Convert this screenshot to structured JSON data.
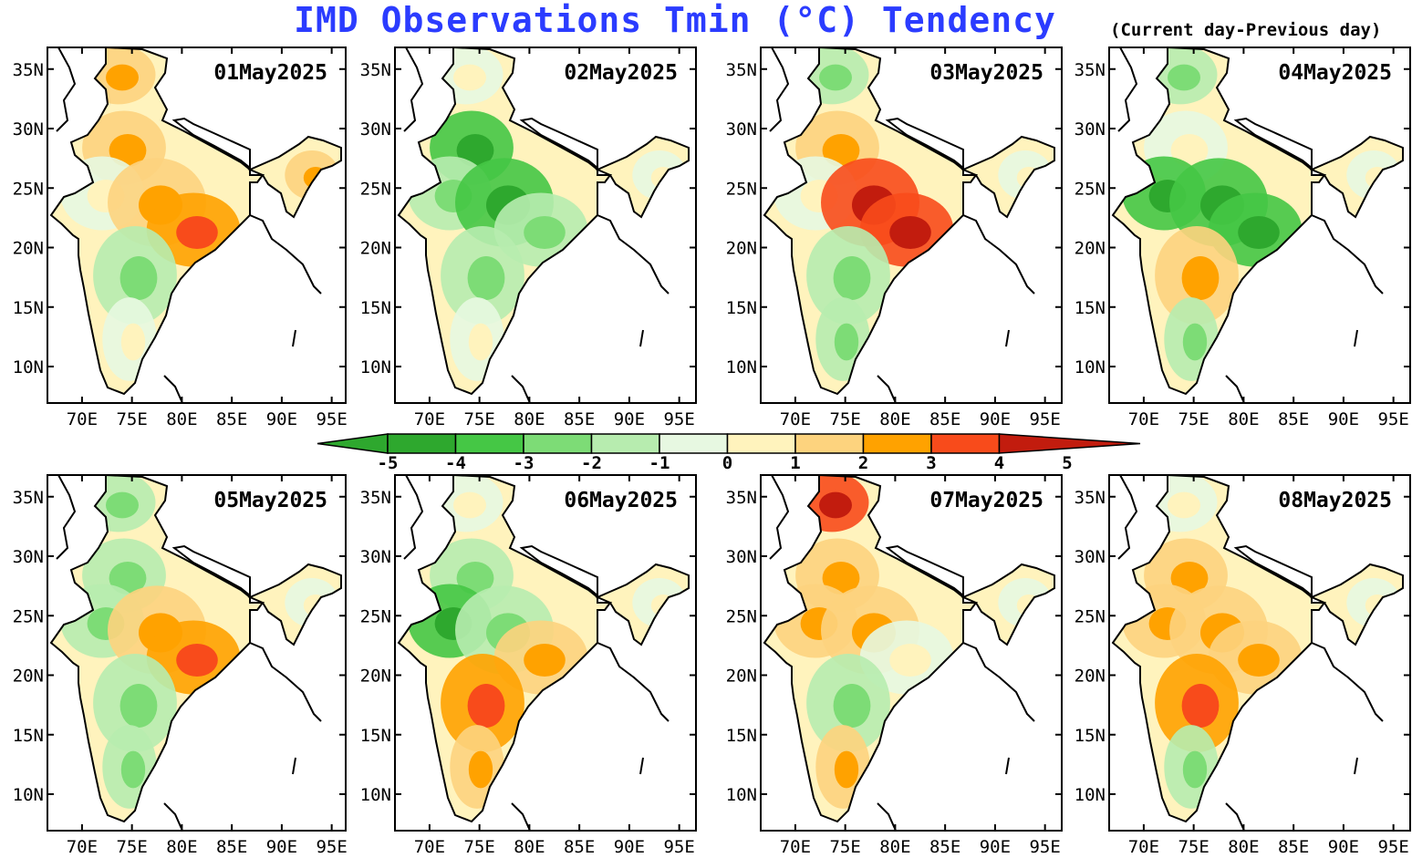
{
  "title": "IMD Observations Tmin (°C) Tendency",
  "subtitle": "(Current day-Previous day)",
  "colors": {
    "title": "#2b3cff",
    "scale": [
      "#2ea82e",
      "#45c745",
      "#7ddc76",
      "#b7ecaf",
      "#e7f8e1",
      "#fff3bd",
      "#fdd37e",
      "#ffa200",
      "#f84b1b",
      "#c21c0e"
    ]
  },
  "lat_ticks": [
    "35N",
    "30N",
    "25N",
    "20N",
    "15N",
    "10N"
  ],
  "lon_ticks": [
    "70E",
    "75E",
    "80E",
    "85E",
    "90E",
    "95E"
  ],
  "colorbar": {
    "labels": [
      "-5",
      "-4",
      "-3",
      "-2",
      "-1",
      "0",
      "1",
      "2",
      "3",
      "4",
      "5"
    ],
    "unit": "°C"
  },
  "panels": [
    {
      "date": "01May2025",
      "pattern": [
        "warm",
        "warm",
        "neutral",
        "warm",
        "hot",
        "cool",
        "neutral",
        "warm"
      ]
    },
    {
      "date": "02May2025",
      "pattern": [
        "neutral",
        "cold",
        "cool",
        "cold",
        "cool",
        "cool",
        "neutral",
        "neutral"
      ]
    },
    {
      "date": "03May2025",
      "pattern": [
        "cool",
        "warm",
        "neutral",
        "veryhot",
        "veryhot",
        "cool",
        "cool",
        "neutral"
      ]
    },
    {
      "date": "04May2025",
      "pattern": [
        "cool",
        "neutral",
        "cold",
        "cold",
        "cold",
        "warm",
        "cool",
        "neutral"
      ]
    },
    {
      "date": "05May2025",
      "pattern": [
        "cool",
        "cool",
        "cool",
        "warm",
        "hot",
        "cool",
        "cool",
        "neutral"
      ]
    },
    {
      "date": "06May2025",
      "pattern": [
        "neutral",
        "cool",
        "cold",
        "cool",
        "warm",
        "hot",
        "warm",
        "neutral"
      ]
    },
    {
      "date": "07May2025",
      "pattern": [
        "veryhot",
        "warm",
        "warm",
        "warm",
        "neutral",
        "cool",
        "warm",
        "neutral"
      ]
    },
    {
      "date": "08May2025",
      "pattern": [
        "neutral",
        "warm",
        "warm",
        "warm",
        "warm",
        "hot",
        "cool",
        "neutral"
      ]
    }
  ]
}
